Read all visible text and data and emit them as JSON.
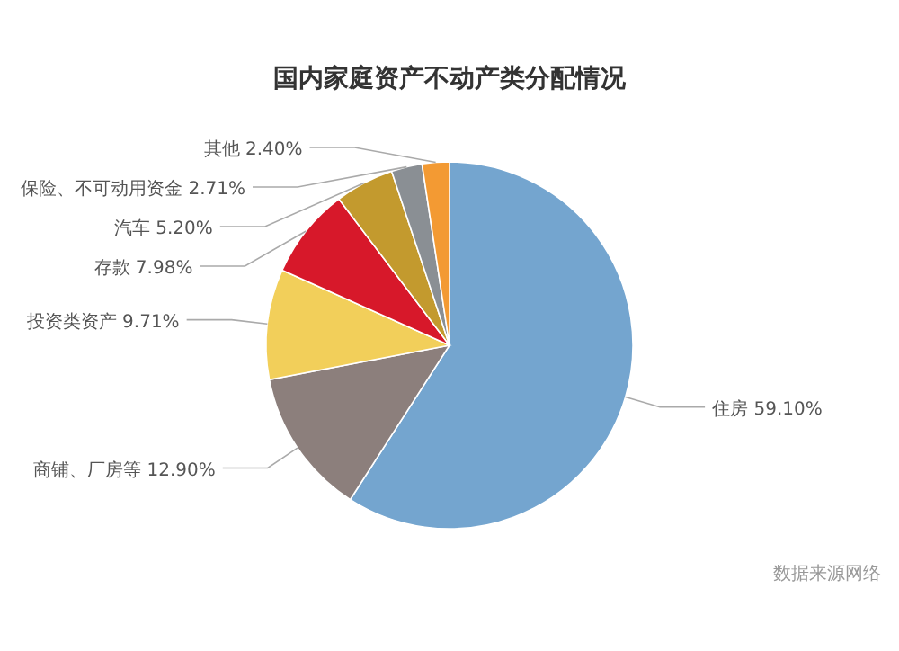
{
  "chart_data": {
    "type": "pie",
    "title": "国内家庭资产不动产类分配情况",
    "categories": [
      "住房",
      "商铺、厂房等",
      "投资类资产",
      "存款",
      "汽车",
      "保险、不可动用资金",
      "其他"
    ],
    "values": [
      59.1,
      12.9,
      9.71,
      7.98,
      5.2,
      2.71,
      2.4
    ],
    "value_labels": [
      "59.10%",
      "12.90%",
      "9.71%",
      "7.98%",
      "5.20%",
      "2.71%",
      "2.40%"
    ],
    "colors": [
      "#74a5cf",
      "#8c7f7c",
      "#f2cf5a",
      "#d7182a",
      "#c39a2e",
      "#8a8f94",
      "#f39a33"
    ],
    "annotations": [
      "数据来源网络"
    ],
    "legend": false
  }
}
